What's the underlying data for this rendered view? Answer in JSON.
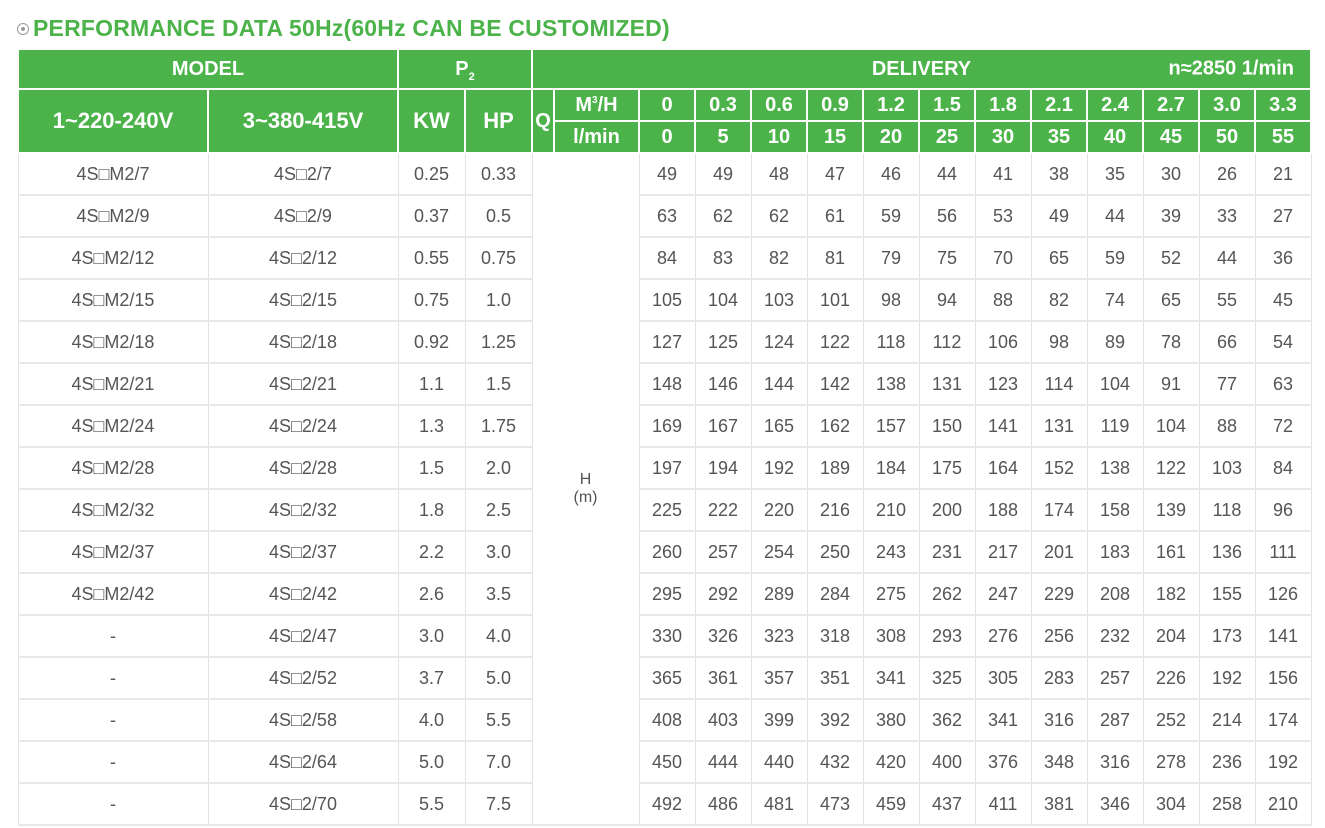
{
  "title": "PERFORMANCE DATA 50Hz(60Hz CAN BE CUSTOMIZED)",
  "header": {
    "model": "MODEL",
    "p_letter": "P",
    "p_sub": "2",
    "delivery": "DELIVERY",
    "rpm": "n≈2850 1/min",
    "single_phase": "1~220-240V",
    "three_phase": "3~380-415V",
    "kw": "KW",
    "hp": "HP",
    "q": "Q",
    "m3h_base": "M",
    "m3h_sup": "3",
    "m3h_tail": "/H",
    "lmin": "l/min",
    "m3h_values": [
      "0",
      "0.3",
      "0.6",
      "0.9",
      "1.2",
      "1.5",
      "1.8",
      "2.1",
      "2.4",
      "2.7",
      "3.0",
      "3.3"
    ],
    "lmin_values": [
      "0",
      "5",
      "10",
      "15",
      "20",
      "25",
      "30",
      "35",
      "40",
      "45",
      "50",
      "55"
    ]
  },
  "head_label": {
    "h": "H",
    "unit": "(m)"
  },
  "rows": [
    {
      "m1": "4S□M2/7",
      "m3": "4S□2/7",
      "kw": "0.25",
      "hp": "0.33",
      "vals": [
        "49",
        "49",
        "48",
        "47",
        "46",
        "44",
        "41",
        "38",
        "35",
        "30",
        "26",
        "21"
      ]
    },
    {
      "m1": "4S□M2/9",
      "m3": "4S□2/9",
      "kw": "0.37",
      "hp": "0.5",
      "vals": [
        "63",
        "62",
        "62",
        "61",
        "59",
        "56",
        "53",
        "49",
        "44",
        "39",
        "33",
        "27"
      ]
    },
    {
      "m1": "4S□M2/12",
      "m3": "4S□2/12",
      "kw": "0.55",
      "hp": "0.75",
      "vals": [
        "84",
        "83",
        "82",
        "81",
        "79",
        "75",
        "70",
        "65",
        "59",
        "52",
        "44",
        "36"
      ]
    },
    {
      "m1": "4S□M2/15",
      "m3": "4S□2/15",
      "kw": "0.75",
      "hp": "1.0",
      "vals": [
        "105",
        "104",
        "103",
        "101",
        "98",
        "94",
        "88",
        "82",
        "74",
        "65",
        "55",
        "45"
      ]
    },
    {
      "m1": "4S□M2/18",
      "m3": "4S□2/18",
      "kw": "0.92",
      "hp": "1.25",
      "vals": [
        "127",
        "125",
        "124",
        "122",
        "118",
        "112",
        "106",
        "98",
        "89",
        "78",
        "66",
        "54"
      ]
    },
    {
      "m1": "4S□M2/21",
      "m3": "4S□2/21",
      "kw": "1.1",
      "hp": "1.5",
      "vals": [
        "148",
        "146",
        "144",
        "142",
        "138",
        "131",
        "123",
        "114",
        "104",
        "91",
        "77",
        "63"
      ]
    },
    {
      "m1": "4S□M2/24",
      "m3": "4S□2/24",
      "kw": "1.3",
      "hp": "1.75",
      "vals": [
        "169",
        "167",
        "165",
        "162",
        "157",
        "150",
        "141",
        "131",
        "119",
        "104",
        "88",
        "72"
      ]
    },
    {
      "m1": "4S□M2/28",
      "m3": "4S□2/28",
      "kw": "1.5",
      "hp": "2.0",
      "vals": [
        "197",
        "194",
        "192",
        "189",
        "184",
        "175",
        "164",
        "152",
        "138",
        "122",
        "103",
        "84"
      ]
    },
    {
      "m1": "4S□M2/32",
      "m3": "4S□2/32",
      "kw": "1.8",
      "hp": "2.5",
      "vals": [
        "225",
        "222",
        "220",
        "216",
        "210",
        "200",
        "188",
        "174",
        "158",
        "139",
        "118",
        "96"
      ]
    },
    {
      "m1": "4S□M2/37",
      "m3": "4S□2/37",
      "kw": "2.2",
      "hp": "3.0",
      "vals": [
        "260",
        "257",
        "254",
        "250",
        "243",
        "231",
        "217",
        "201",
        "183",
        "161",
        "136",
        "111"
      ]
    },
    {
      "m1": "4S□M2/42",
      "m3": "4S□2/42",
      "kw": "2.6",
      "hp": "3.5",
      "vals": [
        "295",
        "292",
        "289",
        "284",
        "275",
        "262",
        "247",
        "229",
        "208",
        "182",
        "155",
        "126"
      ]
    },
    {
      "m1": "-",
      "m3": "4S□2/47",
      "kw": "3.0",
      "hp": "4.0",
      "vals": [
        "330",
        "326",
        "323",
        "318",
        "308",
        "293",
        "276",
        "256",
        "232",
        "204",
        "173",
        "141"
      ]
    },
    {
      "m1": "-",
      "m3": "4S□2/52",
      "kw": "3.7",
      "hp": "5.0",
      "vals": [
        "365",
        "361",
        "357",
        "351",
        "341",
        "325",
        "305",
        "283",
        "257",
        "226",
        "192",
        "156"
      ]
    },
    {
      "m1": "-",
      "m3": "4S□2/58",
      "kw": "4.0",
      "hp": "5.5",
      "vals": [
        "408",
        "403",
        "399",
        "392",
        "380",
        "362",
        "341",
        "316",
        "287",
        "252",
        "214",
        "174"
      ]
    },
    {
      "m1": "-",
      "m3": "4S□2/64",
      "kw": "5.0",
      "hp": "7.0",
      "vals": [
        "450",
        "444",
        "440",
        "432",
        "420",
        "400",
        "376",
        "348",
        "316",
        "278",
        "236",
        "192"
      ]
    },
    {
      "m1": "-",
      "m3": "4S□2/70",
      "kw": "5.5",
      "hp": "7.5",
      "vals": [
        "492",
        "486",
        "481",
        "473",
        "459",
        "437",
        "411",
        "381",
        "346",
        "304",
        "258",
        "210"
      ]
    }
  ]
}
